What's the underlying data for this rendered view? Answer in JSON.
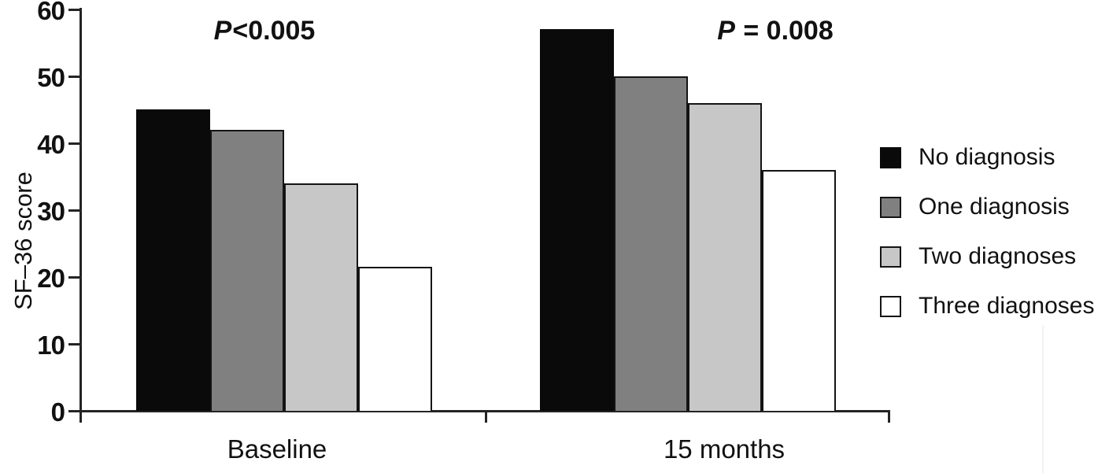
{
  "figure": {
    "ylabel": "SF–36 score"
  },
  "chart_data": {
    "type": "bar",
    "title": "",
    "xlabel": "",
    "ylabel": "SF–36 score",
    "ylim": [
      0,
      60
    ],
    "yticks": [
      0,
      10,
      20,
      30,
      40,
      50,
      60
    ],
    "grid": false,
    "legend_position": "right",
    "categories": [
      "Baseline",
      "15 months"
    ],
    "series": [
      {
        "name": "No diagnosis",
        "color": "#0a0a0a",
        "values": [
          45,
          57
        ]
      },
      {
        "name": "One diagnosis",
        "color": "#808080",
        "values": [
          42,
          50
        ]
      },
      {
        "name": "Two diagnoses",
        "color": "#c7c7c7",
        "values": [
          34,
          46
        ]
      },
      {
        "name": "Three diagnoses",
        "color": "#ffffff",
        "values": [
          21.5,
          36
        ]
      }
    ],
    "annotations": [
      {
        "text": "P<0.005",
        "x_category": "Baseline"
      },
      {
        "text": "P = 0.008",
        "x_category": "15 months"
      }
    ]
  }
}
